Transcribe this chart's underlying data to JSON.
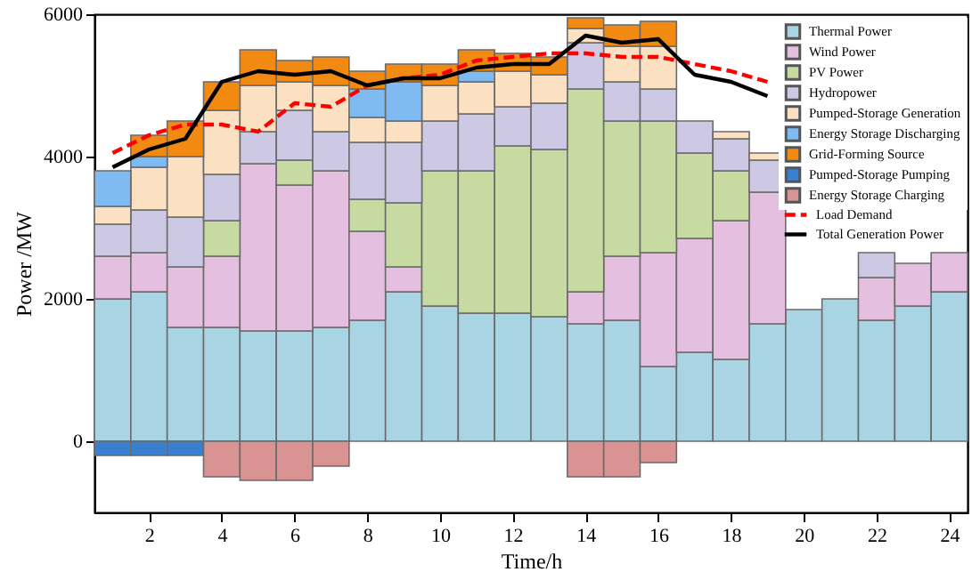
{
  "chart_data": {
    "type": "bar",
    "stacked": true,
    "xlabel": "Time/h",
    "ylabel": "Power /MW",
    "x": [
      1,
      2,
      3,
      4,
      5,
      6,
      7,
      8,
      9,
      10,
      11,
      12,
      13,
      14,
      15,
      16,
      17,
      18,
      19,
      20,
      21,
      22,
      23,
      24
    ],
    "xlim": [
      0.5,
      24.5
    ],
    "xticks": [
      2,
      4,
      6,
      8,
      10,
      12,
      14,
      16,
      18,
      20,
      22,
      24
    ],
    "ylim": [
      -1000,
      6000
    ],
    "yticks": [
      0,
      2000,
      4000,
      6000
    ],
    "grid": false,
    "legend": "top right",
    "series": [
      {
        "name": "Thermal Power",
        "color": "#a9d4e3",
        "values": [
          2000,
          2100,
          1600,
          1600,
          1550,
          1550,
          1600,
          1700,
          2100,
          1900,
          1800,
          1800,
          1750,
          1650,
          1700,
          1050,
          1250,
          1150,
          1650,
          1850,
          2000,
          1700,
          1900,
          2100
        ]
      },
      {
        "name": "Wind Power",
        "color": "#e5bfe0",
        "values": [
          600,
          550,
          850,
          1000,
          2350,
          2050,
          2200,
          1250,
          350,
          0,
          0,
          0,
          0,
          450,
          900,
          1600,
          1600,
          1950,
          1850,
          null,
          null,
          600,
          600,
          550
        ]
      },
      {
        "name": "PV Power",
        "color": "#c6daa2",
        "values": [
          0,
          0,
          0,
          500,
          0,
          350,
          0,
          450,
          900,
          1900,
          2000,
          2350,
          2350,
          2850,
          1900,
          1850,
          1200,
          700,
          0,
          null,
          null,
          0,
          0,
          null
        ]
      },
      {
        "name": "Hydropower",
        "color": "#cdc9e5",
        "values": [
          450,
          600,
          700,
          650,
          450,
          700,
          550,
          800,
          850,
          700,
          800,
          550,
          650,
          650,
          550,
          450,
          450,
          450,
          450,
          null,
          null,
          350,
          null,
          null
        ]
      },
      {
        "name": "Pumped-Storage Generation",
        "color": "#fce0c2",
        "values": [
          250,
          600,
          850,
          900,
          650,
          400,
          650,
          350,
          300,
          500,
          450,
          500,
          400,
          200,
          500,
          600,
          0,
          100,
          100,
          null,
          null,
          null,
          null,
          null
        ]
      },
      {
        "name": "Energy Storage Discharging",
        "color": "#7fbaf0",
        "values": [
          500,
          150,
          0,
          0,
          0,
          0,
          0,
          400,
          550,
          0,
          150,
          0,
          0,
          0,
          0,
          0,
          0,
          0,
          0,
          null,
          null,
          null,
          null,
          null
        ]
      },
      {
        "name": "Grid-Forming Source",
        "color": "#f28a12",
        "values": [
          0,
          300,
          500,
          400,
          500,
          300,
          400,
          250,
          250,
          300,
          300,
          250,
          250,
          150,
          300,
          350,
          0,
          0,
          0,
          null,
          null,
          null,
          null,
          null
        ]
      },
      {
        "name": "Pumped-Storage Pumping",
        "color": "#3a80d0",
        "values": [
          -200,
          -200,
          -200,
          0,
          0,
          0,
          0,
          0,
          0,
          0,
          0,
          0,
          0,
          0,
          0,
          0,
          0,
          0,
          0,
          0,
          0,
          0,
          0,
          0
        ]
      },
      {
        "name": "Energy Storage Charging",
        "color": "#d99393",
        "values": [
          0,
          0,
          0,
          -500,
          -550,
          -550,
          -350,
          0,
          0,
          0,
          0,
          0,
          0,
          -500,
          -500,
          -300,
          0,
          0,
          0,
          0,
          0,
          0,
          0,
          0
        ]
      },
      {
        "name": "Load Demand",
        "type": "line",
        "line_style": "dashed",
        "color": "#ff0000",
        "values": [
          4050,
          4300,
          4450,
          4450,
          4350,
          4750,
          4700,
          5000,
          5100,
          5150,
          5350,
          5400,
          5450,
          5450,
          5400,
          5400,
          5300,
          5200,
          5050,
          null,
          null,
          null,
          null,
          null
        ]
      },
      {
        "name": "Total Generation Power",
        "type": "line",
        "line_style": "solid",
        "color": "#000000",
        "values": [
          3850,
          4100,
          4250,
          5050,
          5200,
          5150,
          5200,
          5000,
          5100,
          5100,
          5250,
          5300,
          5300,
          5700,
          5600,
          5650,
          5150,
          5050,
          4850,
          null,
          null,
          null,
          null,
          null
        ]
      }
    ]
  }
}
